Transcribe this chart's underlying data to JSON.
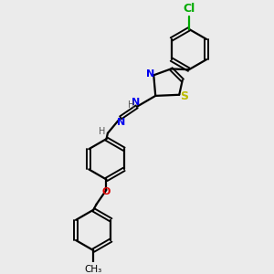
{
  "bg_color": "#ebebeb",
  "bond_color": "#000000",
  "N_color": "#0000ee",
  "S_color": "#bbbb00",
  "O_color": "#dd0000",
  "Cl_color": "#00aa00",
  "H_color": "#555555",
  "line_width": 1.6,
  "font_size": 8,
  "figsize": [
    3.0,
    3.0
  ],
  "dpi": 100,
  "xlim": [
    0,
    10
  ],
  "ylim": [
    0,
    10
  ]
}
